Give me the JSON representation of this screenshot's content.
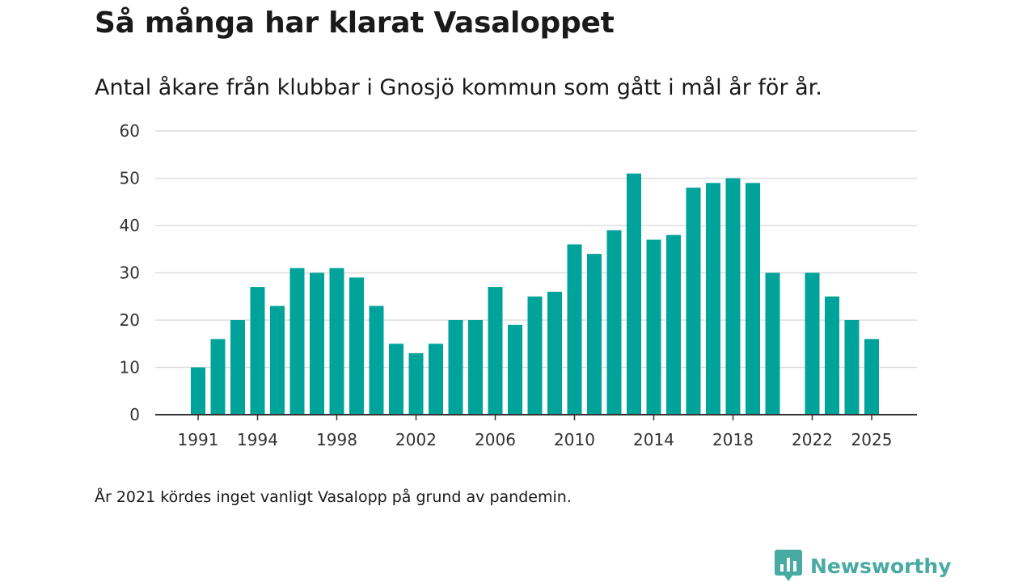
{
  "header": {
    "title": "Så många har klarat Vasaloppet",
    "subtitle": "Antal åkare från klubbar i Gnosjö kommun som gått i mål år för år."
  },
  "footer": {
    "note": "År 2021 kördes inget vanligt Vasalopp på grund av pandemin.",
    "brand": "Newsworthy"
  },
  "colors": {
    "bar": "#00a39a",
    "grid": "#dddddd",
    "axis": "#333333",
    "brand": "#47aaa3"
  },
  "chart_data": {
    "type": "bar",
    "title": "Så många har klarat Vasaloppet",
    "xlabel": "",
    "ylabel": "",
    "ylim": [
      0,
      60
    ],
    "yticks": [
      0,
      10,
      20,
      30,
      40,
      50,
      60
    ],
    "xticks": [
      1991,
      1994,
      1998,
      2002,
      2006,
      2010,
      2014,
      2018,
      2022,
      2025
    ],
    "grid": true,
    "categories": [
      1991,
      1992,
      1993,
      1994,
      1995,
      1996,
      1997,
      1998,
      1999,
      2000,
      2001,
      2002,
      2003,
      2004,
      2005,
      2006,
      2007,
      2008,
      2009,
      2010,
      2011,
      2012,
      2013,
      2014,
      2015,
      2016,
      2017,
      2018,
      2019,
      2020,
      2021,
      2022,
      2023,
      2024,
      2025
    ],
    "values": [
      10,
      16,
      20,
      27,
      23,
      31,
      30,
      31,
      29,
      23,
      15,
      13,
      15,
      20,
      20,
      27,
      19,
      25,
      26,
      36,
      34,
      39,
      51,
      37,
      38,
      48,
      49,
      50,
      49,
      30,
      null,
      30,
      25,
      20,
      16
    ]
  }
}
